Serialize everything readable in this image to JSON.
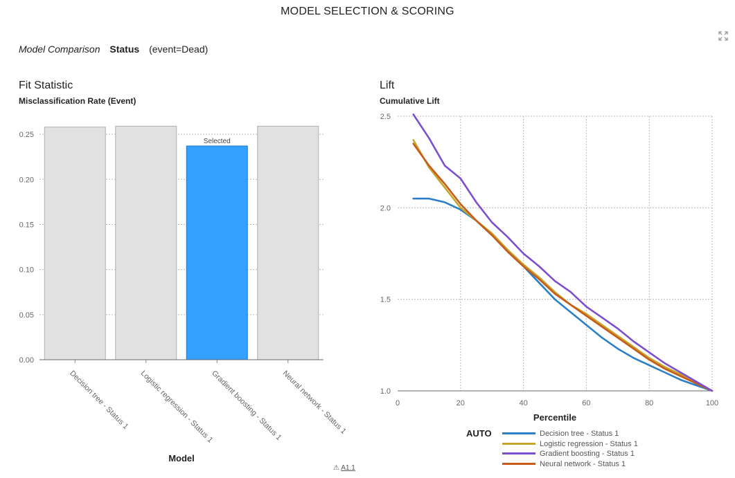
{
  "page": {
    "title": "MODEL SELECTION & SCORING",
    "expand_icon": "expand-icon"
  },
  "header": {
    "label": "Model Comparison",
    "target": "Status",
    "event": "(event=Dead)"
  },
  "fit_panel": {
    "title": "Fit Statistic",
    "subtitle": "Misclassification Rate (Event)"
  },
  "lift_panel": {
    "title": "Lift",
    "subtitle": "Cumulative Lift"
  },
  "accessibility": {
    "icon": "warning-icon",
    "label": "A1.1"
  },
  "colors": {
    "bar_default": "#e1e1e1",
    "bar_selected": "#33a0ff",
    "decision_tree": "#2a7fc9",
    "logistic_regression": "#c4a62c",
    "gradient_boosting": "#7c4fce",
    "neural_network": "#c75b1a"
  },
  "chart_data": [
    {
      "type": "bar",
      "title": "Misclassification Rate (Event)",
      "xlabel": "Model",
      "ylabel": "",
      "categories": [
        "Decision tree - Status 1",
        "Logistic regression - Status 1",
        "Gradient boosting - Status 1",
        "Neural network - Status 1"
      ],
      "values": [
        0.258,
        0.259,
        0.237,
        0.259
      ],
      "selected_index": 2,
      "selected_label": "Selected",
      "ylim": [
        0,
        0.27
      ],
      "yticks": [
        0,
        0.05,
        0.1,
        0.15,
        0.2,
        0.25
      ],
      "ytick_labels": [
        "0.00",
        "0.05",
        "0.10",
        "0.15",
        "0.20",
        "0.25"
      ],
      "grid": true
    },
    {
      "type": "line",
      "title": "Cumulative Lift",
      "xlabel": "Percentile",
      "ylabel": "",
      "xlim": [
        0,
        100
      ],
      "ylim": [
        1.0,
        2.5
      ],
      "xticks": [
        0,
        20,
        40,
        60,
        80,
        100
      ],
      "yticks": [
        1.0,
        1.5,
        2.0,
        2.5
      ],
      "ytick_labels": [
        "1.0",
        "1.5",
        "2.0",
        "2.5"
      ],
      "grid": true,
      "legend_title": "AUTO",
      "legend_position": "bottom",
      "x": [
        5,
        10,
        15,
        20,
        25,
        30,
        35,
        40,
        45,
        50,
        55,
        60,
        65,
        70,
        75,
        80,
        85,
        90,
        95,
        100
      ],
      "series": [
        {
          "name": "Decision tree - Status 1",
          "color": "#2a7fc9",
          "values": [
            2.05,
            2.05,
            2.03,
            1.99,
            1.93,
            1.85,
            1.76,
            1.68,
            1.59,
            1.5,
            1.43,
            1.36,
            1.29,
            1.23,
            1.18,
            1.14,
            1.1,
            1.06,
            1.03,
            1.0
          ]
        },
        {
          "name": "Logistic regression - Status 1",
          "color": "#c4a62c",
          "values": [
            2.37,
            2.22,
            2.11,
            2.0,
            1.93,
            1.86,
            1.77,
            1.69,
            1.62,
            1.54,
            1.47,
            1.42,
            1.36,
            1.3,
            1.24,
            1.18,
            1.13,
            1.09,
            1.04,
            1.0
          ]
        },
        {
          "name": "Gradient boosting - Status 1",
          "color": "#7c4fce",
          "values": [
            2.51,
            2.38,
            2.23,
            2.16,
            2.03,
            1.92,
            1.84,
            1.75,
            1.68,
            1.6,
            1.54,
            1.46,
            1.4,
            1.34,
            1.27,
            1.21,
            1.15,
            1.1,
            1.05,
            1.0
          ]
        },
        {
          "name": "Neural network - Status 1",
          "color": "#c75b1a",
          "values": [
            2.35,
            2.23,
            2.13,
            2.02,
            1.93,
            1.85,
            1.76,
            1.68,
            1.61,
            1.53,
            1.47,
            1.41,
            1.35,
            1.29,
            1.23,
            1.17,
            1.12,
            1.08,
            1.04,
            1.0
          ]
        }
      ]
    }
  ]
}
